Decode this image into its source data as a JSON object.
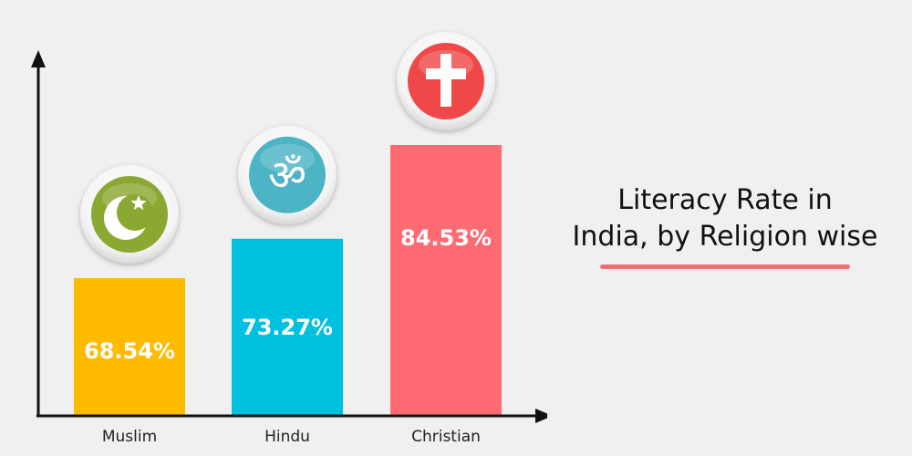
{
  "chart_data": {
    "type": "bar",
    "title_lines": [
      "Literacy Rate in",
      "India, by Religion wise"
    ],
    "categories": [
      "Muslim",
      "Hindu",
      "Christian"
    ],
    "values": [
      68.54,
      73.27,
      84.53
    ],
    "value_labels": [
      "68.54%",
      "73.27%",
      "84.53%"
    ],
    "icons": [
      "crescent-star-icon",
      "om-icon",
      "cross-icon"
    ],
    "colors": [
      "#ffbb00",
      "#00c0e0",
      "#ff6b73"
    ],
    "icon_colors": [
      "#8aa832",
      "#4cb4c4",
      "#f04848"
    ],
    "axis_color": "#111111",
    "underline_color": "#ff6b73",
    "grid": false,
    "legend": "none"
  }
}
